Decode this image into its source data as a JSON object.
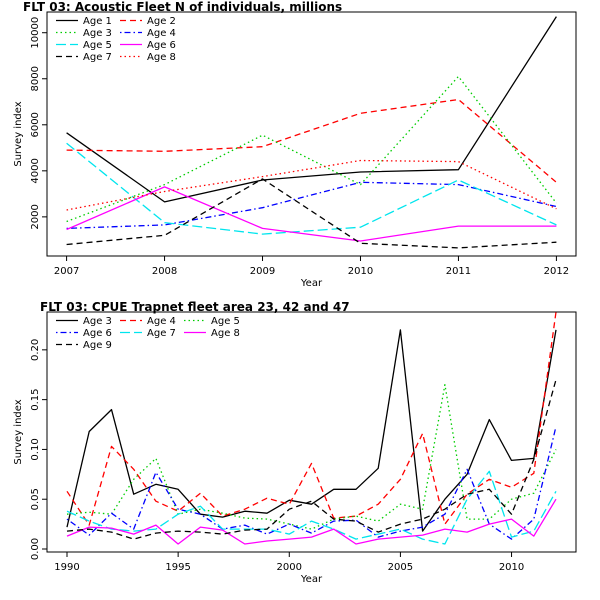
{
  "chart_data": [
    {
      "type": "line",
      "title": "FLT 03: Acoustic Fleet   N of individuals, millions",
      "xlabel": "Year",
      "ylabel": "Survey index",
      "x": [
        2007,
        2008,
        2009,
        2010,
        2011,
        2012
      ],
      "xticks": [
        2007,
        2008,
        2009,
        2010,
        2011,
        2012
      ],
      "yticks": [
        2000,
        4000,
        6000,
        8000,
        10000
      ],
      "xlim": [
        2006.8,
        2012.2
      ],
      "ylim": [
        300,
        10900
      ],
      "legend_position": "top-left",
      "grid": false,
      "series": [
        {
          "name": "Age 1",
          "color": "#000000",
          "dash": "solid",
          "values": [
            5650,
            2650,
            3600,
            3950,
            4050,
            10700
          ]
        },
        {
          "name": "Age 2",
          "color": "#ff0000",
          "dash": "dashed",
          "values": [
            4900,
            4850,
            5050,
            6500,
            7100,
            3500
          ]
        },
        {
          "name": "Age 3",
          "color": "#00cd00",
          "dash": "dotted",
          "values": [
            1800,
            3400,
            5550,
            3400,
            8100,
            2600
          ]
        },
        {
          "name": "Age 4",
          "color": "#0000ff",
          "dash": "dotdash",
          "values": [
            1500,
            1650,
            2400,
            3500,
            3400,
            2450
          ]
        },
        {
          "name": "Age 5",
          "color": "#00e5ee",
          "dash": "longdash",
          "values": [
            5200,
            1750,
            1250,
            1550,
            3600,
            1650
          ]
        },
        {
          "name": "Age 6",
          "color": "#ff00ff",
          "dash": "solid",
          "values": [
            1450,
            3300,
            1500,
            950,
            1600,
            1600
          ]
        },
        {
          "name": "Age 7",
          "color": "#000000",
          "dash": "dashed",
          "values": [
            800,
            1200,
            3650,
            850,
            650,
            900
          ]
        },
        {
          "name": "Age 8",
          "color": "#ff0000",
          "dash": "dotted",
          "values": [
            2300,
            3100,
            3750,
            4450,
            4400,
            2350
          ]
        }
      ]
    },
    {
      "type": "line",
      "title": "FLT 03: CPUE Trapnet fleet area 23, 42 and 47",
      "xlabel": "Year",
      "ylabel": "Survey index",
      "x": [
        1990,
        1991,
        1992,
        1993,
        1994,
        1995,
        1996,
        1997,
        1998,
        1999,
        2000,
        2001,
        2002,
        2003,
        2004,
        2005,
        2006,
        2007,
        2008,
        2009,
        2010,
        2011,
        2012
      ],
      "xticks": [
        1990,
        1995,
        2000,
        2005,
        2010
      ],
      "yticks": [
        0.0,
        0.05,
        0.1,
        0.15,
        0.2
      ],
      "ytick_labels": [
        "0.00",
        "0.05",
        "0.10",
        "0.15",
        "0.20"
      ],
      "xlim": [
        1989.1,
        2012.9
      ],
      "ylim": [
        -0.003,
        0.238
      ],
      "legend_position": "top-left",
      "grid": false,
      "series": [
        {
          "name": "Age 3",
          "color": "#000000",
          "dash": "solid",
          "values": [
            0.022,
            0.118,
            0.14,
            0.055,
            0.065,
            0.06,
            0.035,
            0.032,
            0.038,
            0.036,
            0.049,
            0.045,
            0.06,
            0.06,
            0.081,
            0.22,
            0.018,
            0.05,
            0.075,
            0.13,
            0.089,
            0.091,
            0.22
          ]
        },
        {
          "name": "Age 4",
          "color": "#ff0000",
          "dash": "dashed",
          "values": [
            0.058,
            0.024,
            0.103,
            0.08,
            0.048,
            0.038,
            0.056,
            0.033,
            0.04,
            0.051,
            0.045,
            0.086,
            0.031,
            0.033,
            0.045,
            0.07,
            0.116,
            0.025,
            0.055,
            0.07,
            0.062,
            0.076,
            0.238
          ]
        },
        {
          "name": "Age 5",
          "color": "#00cd00",
          "dash": "dotted",
          "values": [
            0.035,
            0.037,
            0.035,
            0.07,
            0.091,
            0.035,
            0.04,
            0.036,
            0.031,
            0.03,
            0.025,
            0.02,
            0.03,
            0.033,
            0.028,
            0.045,
            0.04,
            0.165,
            0.03,
            0.03,
            0.05,
            0.056,
            0.1
          ]
        },
        {
          "name": "Age 6",
          "color": "#0000ff",
          "dash": "dotdash",
          "values": [
            0.03,
            0.014,
            0.036,
            0.02,
            0.077,
            0.04,
            0.035,
            0.02,
            0.024,
            0.015,
            0.025,
            0.016,
            0.028,
            0.029,
            0.012,
            0.018,
            0.022,
            0.035,
            0.08,
            0.025,
            0.01,
            0.03,
            0.123
          ]
        },
        {
          "name": "Age 7",
          "color": "#00e5ee",
          "dash": "longdash",
          "values": [
            0.038,
            0.028,
            0.02,
            0.018,
            0.02,
            0.035,
            0.043,
            0.02,
            0.02,
            0.02,
            0.015,
            0.028,
            0.02,
            0.01,
            0.015,
            0.02,
            0.01,
            0.005,
            0.05,
            0.078,
            0.012,
            0.018,
            0.058
          ]
        },
        {
          "name": "Age 8",
          "color": "#ff00ff",
          "dash": "solid",
          "values": [
            0.013,
            0.022,
            0.021,
            0.015,
            0.024,
            0.005,
            0.022,
            0.019,
            0.005,
            0.008,
            0.01,
            0.012,
            0.02,
            0.005,
            0.01,
            0.012,
            0.014,
            0.02,
            0.017,
            0.025,
            0.03,
            0.013,
            0.05
          ]
        },
        {
          "name": "Age 9",
          "color": "#000000",
          "dash": "dashed",
          "values": [
            0.018,
            0.02,
            0.017,
            0.01,
            0.016,
            0.018,
            0.017,
            0.015,
            0.019,
            0.02,
            0.04,
            0.048,
            0.03,
            0.028,
            0.017,
            0.025,
            0.03,
            0.04,
            0.055,
            0.06,
            0.035,
            0.09,
            0.17
          ]
        }
      ]
    }
  ]
}
